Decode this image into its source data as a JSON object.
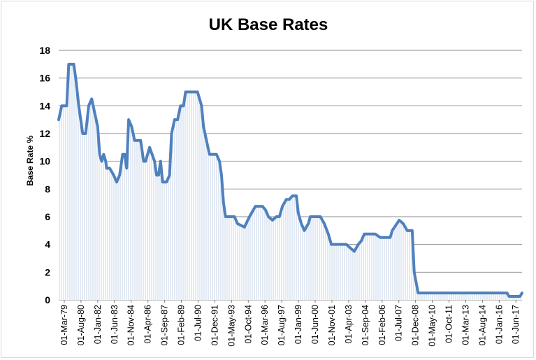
{
  "chart_data": {
    "type": "line",
    "title": "UK Base Rates",
    "xlabel": "",
    "ylabel": "Base Rate %",
    "ylim": [
      0,
      18
    ],
    "yticks": [
      0,
      2,
      4,
      6,
      8,
      10,
      12,
      14,
      16,
      18
    ],
    "grid": true,
    "line_color": "#4f81bd",
    "fill_hatch_color": "#c5d6ea",
    "xlim": [
      "1979-03-01",
      "2017-11-01"
    ],
    "x_tick_labels": [
      "01-Mar-79",
      "01-Aug-80",
      "01-Jan-82",
      "01-Jun-83",
      "01-Nov-84",
      "01-Apr-86",
      "01-Sep-87",
      "01-Feb-89",
      "01-Jul-90",
      "01-Dec-91",
      "01-May-93",
      "01-Oct-94",
      "01-Mar-96",
      "01-Aug-97",
      "01-Jan-99",
      "01-Jun-00",
      "01-Nov-01",
      "01-Apr-03",
      "01-Sep-04",
      "01-Feb-06",
      "01-Jul-07",
      "01-Dec-08",
      "01-May-10",
      "01-Oct-11",
      "01-Mar-13",
      "01-Aug-14",
      "01-Jan-16",
      "01-Jun-17"
    ],
    "series": [
      {
        "points": [
          [
            "1979-03-01",
            13
          ],
          [
            "1979-06-01",
            14
          ],
          [
            "1979-11-01",
            14
          ],
          [
            "1980-01-01",
            17
          ],
          [
            "1980-06-01",
            17
          ],
          [
            "1980-08-01",
            16
          ],
          [
            "1980-11-01",
            14
          ],
          [
            "1981-03-01",
            12
          ],
          [
            "1981-06-01",
            12
          ],
          [
            "1981-09-01",
            14
          ],
          [
            "1981-12-01",
            14.5
          ],
          [
            "1982-03-01",
            13.5
          ],
          [
            "1982-06-01",
            12.5
          ],
          [
            "1982-08-01",
            10.5
          ],
          [
            "1982-10-01",
            10
          ],
          [
            "1982-12-01",
            10.5
          ],
          [
            "1983-02-01",
            10
          ],
          [
            "1983-03-01",
            9.5
          ],
          [
            "1983-06-01",
            9.5
          ],
          [
            "1983-10-01",
            9
          ],
          [
            "1984-01-01",
            8.5
          ],
          [
            "1984-04-01",
            9
          ],
          [
            "1984-07-01",
            10.5
          ],
          [
            "1984-09-01",
            10.5
          ],
          [
            "1984-11-01",
            9.5
          ],
          [
            "1985-01-01",
            13
          ],
          [
            "1985-04-01",
            12.5
          ],
          [
            "1985-07-01",
            11.5
          ],
          [
            "1986-01-01",
            11.5
          ],
          [
            "1986-04-01",
            10
          ],
          [
            "1986-06-01",
            10
          ],
          [
            "1986-10-01",
            11
          ],
          [
            "1987-03-01",
            10
          ],
          [
            "1987-05-01",
            9
          ],
          [
            "1987-07-01",
            9
          ],
          [
            "1987-09-01",
            10
          ],
          [
            "1987-11-01",
            8.5
          ],
          [
            "1988-03-01",
            8.5
          ],
          [
            "1988-06-01",
            9
          ],
          [
            "1988-08-01",
            12
          ],
          [
            "1988-11-01",
            13
          ],
          [
            "1989-02-01",
            13
          ],
          [
            "1989-05-01",
            14
          ],
          [
            "1989-08-01",
            14
          ],
          [
            "1989-10-01",
            15
          ],
          [
            "1990-10-01",
            15
          ],
          [
            "1991-02-01",
            14
          ],
          [
            "1991-04-01",
            12.5
          ],
          [
            "1991-07-01",
            11.5
          ],
          [
            "1991-10-01",
            10.5
          ],
          [
            "1992-05-01",
            10.5
          ],
          [
            "1992-08-01",
            10
          ],
          [
            "1992-10-01",
            9
          ],
          [
            "1992-12-01",
            7
          ],
          [
            "1993-02-01",
            6
          ],
          [
            "1993-11-01",
            6
          ],
          [
            "1994-02-01",
            5.5
          ],
          [
            "1994-09-01",
            5.25
          ],
          [
            "1995-02-01",
            6
          ],
          [
            "1995-08-01",
            6.75
          ],
          [
            "1996-03-01",
            6.75
          ],
          [
            "1996-06-01",
            6.5
          ],
          [
            "1996-09-01",
            6
          ],
          [
            "1997-01-01",
            5.75
          ],
          [
            "1997-05-01",
            6
          ],
          [
            "1997-08-01",
            6
          ],
          [
            "1997-11-01",
            6.75
          ],
          [
            "1998-03-01",
            7.25
          ],
          [
            "1998-06-01",
            7.25
          ],
          [
            "1998-09-01",
            7.5
          ],
          [
            "1999-01-01",
            7.5
          ],
          [
            "1999-03-01",
            6.25
          ],
          [
            "1999-06-01",
            5.5
          ],
          [
            "1999-09-01",
            5
          ],
          [
            "2000-01-01",
            5.5
          ],
          [
            "2000-03-01",
            6
          ],
          [
            "2001-01-01",
            6
          ],
          [
            "2001-05-01",
            5.5
          ],
          [
            "2001-09-01",
            4.75
          ],
          [
            "2001-12-01",
            4
          ],
          [
            "2002-03-01",
            4
          ],
          [
            "2003-03-01",
            4
          ],
          [
            "2003-07-01",
            3.75
          ],
          [
            "2003-11-01",
            3.5
          ],
          [
            "2004-03-01",
            4
          ],
          [
            "2004-06-01",
            4.25
          ],
          [
            "2004-09-01",
            4.75
          ],
          [
            "2005-08-01",
            4.75
          ],
          [
            "2006-01-01",
            4.5
          ],
          [
            "2006-11-01",
            4.5
          ],
          [
            "2007-01-01",
            5
          ],
          [
            "2007-08-01",
            5.75
          ],
          [
            "2007-12-01",
            5.5
          ],
          [
            "2008-04-01",
            5
          ],
          [
            "2008-09-01",
            5
          ],
          [
            "2008-11-01",
            2
          ],
          [
            "2009-03-01",
            0.5
          ],
          [
            "2016-08-01",
            0.5
          ],
          [
            "2016-10-01",
            0.25
          ],
          [
            "2017-09-01",
            0.25
          ],
          [
            "2017-11-01",
            0.5
          ]
        ]
      }
    ]
  }
}
